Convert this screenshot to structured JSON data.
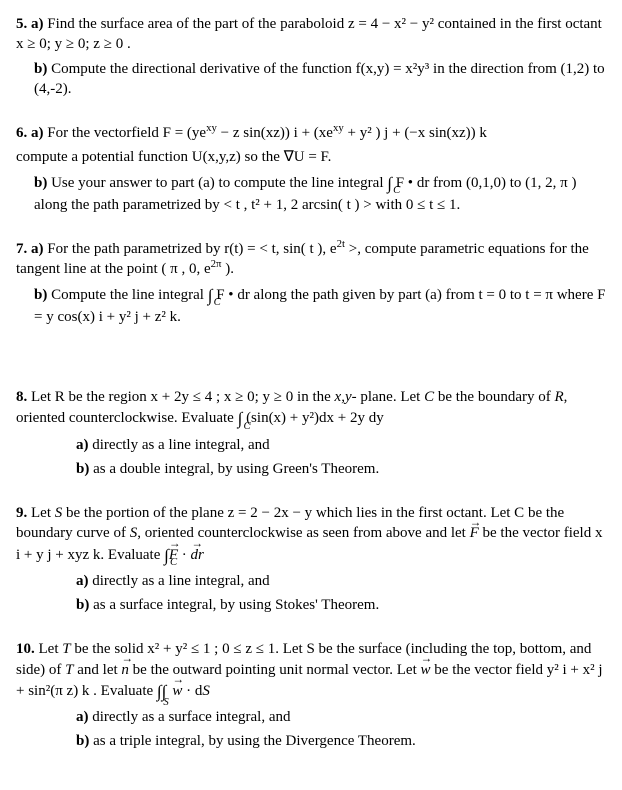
{
  "p5": {
    "a": "5.  a) Find the surface area of the part of the paraboloid  z = 4 − x² − y²  contained in the first octant  x ≥ 0; y ≥ 0; z ≥ 0 .",
    "b": "b) Compute the directional derivative of the function f(x,y) = x²y³ in the direction from (1,2) to (4,-2)."
  },
  "p6": {
    "a_l1": "6. a)  For the vectorfield F  =  (ye<sup>xy</sup> − z sin(xz))  i  +  (xe<sup>xy</sup> + y² )  j  +  (−x sin(xz))  k",
    "a_l2": "compute a potential function U(x,y,z) so the  ∇U  =  F.",
    "b": "b) Use your answer to part (a) to compute the line integral  <span class=\"integral\">∫<span class=\"ilim\">C</span></span>  F  •  dr  from (0,1,0) to (1, 2, π ) along the path parametrized by &lt; t , t² + 1, 2 arcsin( t ) &gt; with  0  ≤  t  ≤  1."
  },
  "p7": {
    "a": "7.  a) For the path parametrized by r(t) = &lt; t,  sin( t ),  e<sup>2t</sup> &gt;, compute parametric equations for the tangent line at the point ( π , 0,  e<sup>2π</sup>  ).",
    "b": "b) Compute the line integral  <span class=\"integral\">∫<span class=\"ilim\">C</span></span>  F  •  dr  along the path given by part (a) from t = 0 to t = π  where F  =   y cos(x)  i  +   y²  j  +  z²  k."
  },
  "p8": {
    "main": "8. Let R be the region  x  + 2y  ≤ 4 ;   x ≥ 0; y ≥ 0 in the <span class=\"it\">x,y-</span> plane. Let <span class=\"it\">C</span> be the boundary of <span class=\"it\">R</span>, oriented counterclockwise. Evaluate  <span class=\"integral\">∫<span class=\"ilim\">C</span></span> (sin(x) + y²)dx + 2y dy",
    "a": "a) directly as a line integral, and",
    "b": "b) as a double integral, by using Green's Theorem."
  },
  "p9": {
    "main": "9. Let <span class=\"it\">S</span> be the portion of the plane  z = 2 − 2x − y  which lies in the first octant. Let C be the boundary curve of <span class=\"it\">S</span>, oriented counterclockwise as seen from above and let  <span class=\"vec it\">F</span>  be the vector field x i + y j + xyz k. Evaluate  <span class=\"integral\">∫<span class=\"ilim\">C</span></span><span class=\"vec it\">F</span> · <span class=\"vec it\">dr</span>",
    "a": "a) directly as a line integral, and",
    "b": "b) as a surface integral, by using Stokes' Theorem."
  },
  "p10": {
    "main": "10. Let <span class=\"it\">T</span> be the solid  x² + y² ≤ 1 ; 0  ≤  z  ≤  1. Let S be the surface (including the top, bottom, and side) of <span class=\"it\">T</span> and let  <span class=\"vec it\">n</span>  be the outward pointing unit normal vector. Let  <span class=\"vec it\">w</span>  be the vector field  y² i  + x² j  + sin²(π z) k . Evaluate  <span class=\"dint\">∫∫<span class=\"dlim\">S</span></span><span class=\"vec it\">w</span> · d<span class=\"it\">S</span>",
    "a": "a) directly as a surface integral, and",
    "b": "b) as a triple integral, by using the Divergence Theorem."
  }
}
